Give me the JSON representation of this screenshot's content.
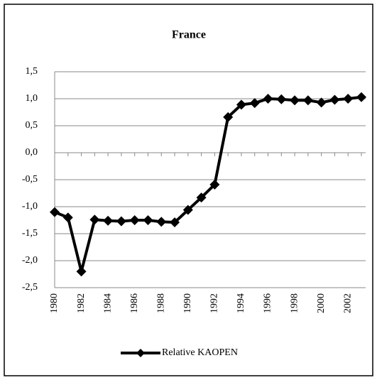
{
  "chart_data": {
    "type": "line",
    "title": "France",
    "categories": [
      "1980",
      null,
      "1982",
      null,
      "1984",
      null,
      "1986",
      null,
      "1988",
      null,
      "1990",
      null,
      "1992",
      null,
      "1994",
      null,
      "1996",
      null,
      "1998",
      null,
      "2000",
      null,
      "2002",
      null
    ],
    "series": [
      {
        "name": "Relative KAOPEN",
        "color": "#000000",
        "values": [
          -1.1,
          -1.2,
          -2.2,
          -1.24,
          -1.26,
          -1.27,
          -1.25,
          -1.25,
          -1.28,
          -1.29,
          -1.06,
          -0.83,
          -0.59,
          0.66,
          0.89,
          0.92,
          1.0,
          0.99,
          0.97,
          0.97,
          0.93,
          0.98,
          1.0,
          1.03
        ]
      }
    ],
    "ylim": [
      -2.5,
      1.5
    ],
    "yticks": [
      {
        "value": -2.5,
        "label": "-2,5"
      },
      {
        "value": -2,
        "label": "-2,0"
      },
      {
        "value": -1.5,
        "label": "-1,5"
      },
      {
        "value": -1,
        "label": "-1,0"
      },
      {
        "value": -0.5,
        "label": "-0,5"
      },
      {
        "value": 0,
        "label": "0,0"
      },
      {
        "value": 0.5,
        "label": "0,5"
      },
      {
        "value": 1,
        "label": "1,0"
      },
      {
        "value": 1.5,
        "label": "1,5"
      }
    ],
    "grid": true,
    "legend": "bottom"
  }
}
